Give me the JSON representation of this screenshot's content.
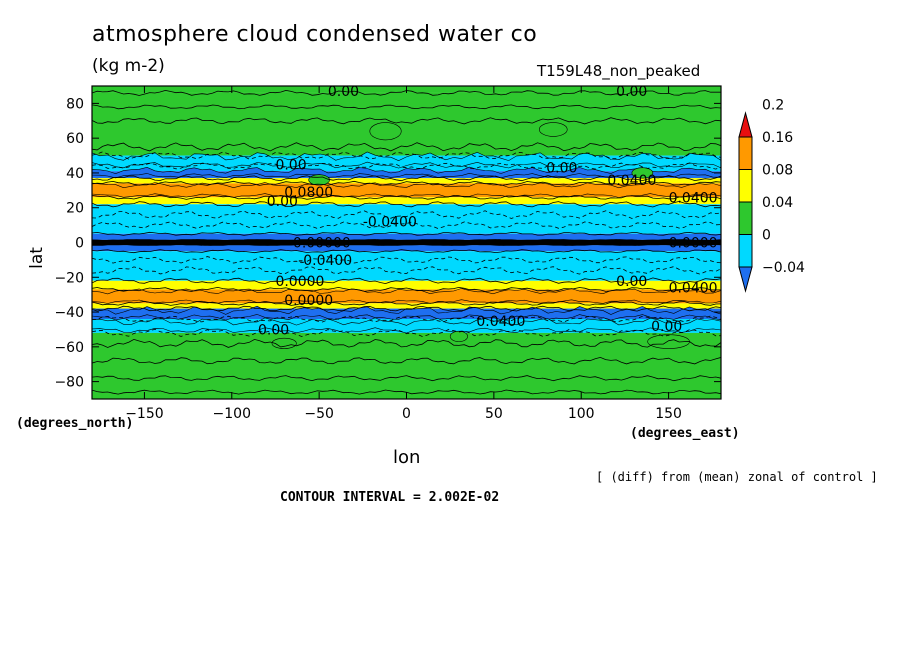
{
  "chart_data": {
    "type": "heatmap",
    "title": "atmosphere cloud condensed water co",
    "units": "(kg m-2)",
    "experiment": "T159L48_non_peaked",
    "xlabel": "lon",
    "ylabel": "lat",
    "x_units_label": "(degrees_east)",
    "y_units_label": "(degrees_north)",
    "xlim": [
      -180,
      180
    ],
    "ylim": [
      -90,
      90
    ],
    "x_ticks": [
      -150,
      -100,
      -50,
      0,
      50,
      100,
      150
    ],
    "y_ticks": [
      -80,
      -60,
      -40,
      -20,
      0,
      20,
      40,
      60,
      80
    ],
    "colorbar": {
      "levels": [
        -0.04,
        0,
        0.04,
        0.08,
        0.16,
        0.2
      ],
      "labels": [
        "-0.04",
        "0",
        "0.04",
        "0.08",
        "0.16",
        "0.2"
      ],
      "colors": [
        "#1e6ff0",
        "#00d9ff",
        "#2ec82e",
        "#ffff00",
        "#ff9900",
        "#e81010"
      ]
    },
    "bands": [
      {
        "lat_from": 90,
        "lat_to": 86,
        "level": 1
      },
      {
        "lat_from": 86,
        "lat_to": 50,
        "level": 1
      },
      {
        "lat_from": 50,
        "lat_to": 41,
        "level": 0
      },
      {
        "lat_from": 41,
        "lat_to": 37,
        "level": -1
      },
      {
        "lat_from": 37,
        "lat_to": 34,
        "level": 2
      },
      {
        "lat_from": 34,
        "lat_to": 26,
        "level": 3
      },
      {
        "lat_from": 26,
        "lat_to": 22,
        "level": 2
      },
      {
        "lat_from": 22,
        "lat_to": 5,
        "level": 0
      },
      {
        "lat_from": 5,
        "lat_to": 1.5,
        "level": -1
      },
      {
        "lat_from": 1.5,
        "lat_to": -1.5,
        "level": 5
      },
      {
        "lat_from": -1.5,
        "lat_to": -5,
        "level": -1
      },
      {
        "lat_from": -5,
        "lat_to": -22,
        "level": 0
      },
      {
        "lat_from": -22,
        "lat_to": -27,
        "level": 2
      },
      {
        "lat_from": -27,
        "lat_to": -35,
        "level": 3
      },
      {
        "lat_from": -35,
        "lat_to": -38,
        "level": 2
      },
      {
        "lat_from": -38,
        "lat_to": -44,
        "level": -1
      },
      {
        "lat_from": -44,
        "lat_to": -52,
        "level": 0
      },
      {
        "lat_from": -52,
        "lat_to": -90,
        "level": 1
      }
    ],
    "contour_labels": [
      {
        "text": "0.00",
        "lon": -45,
        "lat": 87
      },
      {
        "text": "0.00",
        "lon": 120,
        "lat": 87
      },
      {
        "text": "0.00",
        "lon": -75,
        "lat": 45
      },
      {
        "text": "0.00",
        "lon": 80,
        "lat": 43
      },
      {
        "text": "0.0400",
        "lon": 115,
        "lat": 36
      },
      {
        "text": "0.0800",
        "lon": -70,
        "lat": 29
      },
      {
        "text": "0.00",
        "lon": -80,
        "lat": 24
      },
      {
        "text": "0.0400",
        "lon": 150,
        "lat": 26
      },
      {
        "text": "-0.0400",
        "lon": -25,
        "lat": 12
      },
      {
        "text": "0.00000",
        "lon": -65,
        "lat": 0
      },
      {
        "text": "0.0000",
        "lon": 150,
        "lat": 0
      },
      {
        "text": "-0.0400",
        "lon": -62,
        "lat": -10
      },
      {
        "text": "0.0000",
        "lon": -75,
        "lat": -22
      },
      {
        "text": "0.00",
        "lon": 120,
        "lat": -22
      },
      {
        "text": "0.0000",
        "lon": -70,
        "lat": -33
      },
      {
        "text": "0.0400",
        "lon": 150,
        "lat": -26
      },
      {
        "text": "0.0400",
        "lon": 40,
        "lat": -45
      },
      {
        "text": "0.00",
        "lon": -85,
        "lat": -50
      },
      {
        "text": "0.00",
        "lon": 140,
        "lat": -48
      }
    ],
    "contour_interval_text": "CONTOUR INTERVAL = 2.002E-02",
    "note": "[ (diff) from (mean) zonal of control ]"
  }
}
